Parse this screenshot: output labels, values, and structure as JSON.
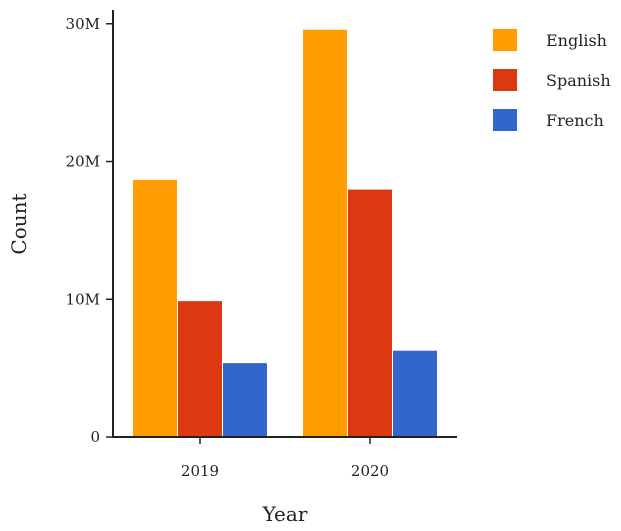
{
  "chart_data": {
    "type": "bar",
    "title": "",
    "xlabel": "Year",
    "ylabel": "Count",
    "categories": [
      "2019",
      "2020"
    ],
    "series": [
      {
        "name": "English",
        "color": "#ff9c00",
        "values": [
          18700000,
          29600000
        ]
      },
      {
        "name": "Spanish",
        "color": "#dc3912",
        "values": [
          9900000,
          18000000
        ]
      },
      {
        "name": "French",
        "color": "#3366cc",
        "values": [
          5400000,
          6300000
        ]
      }
    ],
    "ylim": [
      0,
      31000000
    ],
    "yticks": [
      {
        "value": 0,
        "label": "0"
      },
      {
        "value": 10000000,
        "label": "10M"
      },
      {
        "value": 20000000,
        "label": "20M"
      },
      {
        "value": 30000000,
        "label": "30M"
      }
    ],
    "grid": false,
    "legend": "top-right"
  }
}
